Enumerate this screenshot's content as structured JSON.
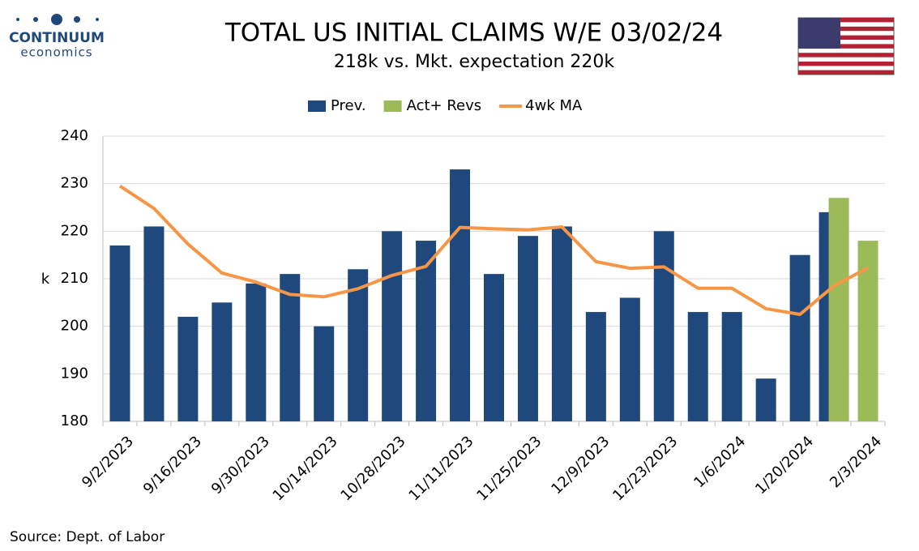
{
  "logo": {
    "name": "CONTINUUM",
    "tagline": "economics"
  },
  "source": "Source: Dept. of Labor",
  "chart_data": {
    "type": "bar",
    "title": "TOTAL US INITIAL CLAIMS W/E 03/02/24",
    "subtitle": "218k vs. Mkt. expectation 220k",
    "y_label": "k",
    "categories": [
      "9/2/2023",
      null,
      "9/16/2023",
      null,
      "9/30/2023",
      null,
      "10/14/2023",
      null,
      "10/28/2023",
      null,
      "11/11/2023",
      null,
      "11/25/2023",
      null,
      "12/9/2023",
      null,
      "12/23/2023",
      null,
      "1/6/2024",
      null,
      "1/20/2024",
      null,
      "2/3/2024"
    ],
    "series": [
      {
        "name": "Prev.",
        "type": "bar",
        "color": "#1f497d",
        "values": [
          217,
          221,
          202,
          205,
          209,
          211,
          200,
          212,
          220,
          218,
          233,
          211,
          219,
          221,
          203,
          206,
          220,
          203,
          203,
          189,
          215,
          224,
          null
        ]
      },
      {
        "name": "Act+ Revs",
        "type": "bar",
        "color": "#9bbb59",
        "values": [
          null,
          null,
          null,
          null,
          null,
          null,
          null,
          null,
          null,
          null,
          null,
          null,
          null,
          null,
          null,
          null,
          null,
          null,
          null,
          null,
          null,
          227,
          218
        ]
      },
      {
        "name": "4wk MA",
        "type": "line",
        "color": "#f79646",
        "values": [
          229.5,
          224.8,
          217.3,
          211.2,
          209.3,
          206.7,
          206.2,
          207.9,
          210.7,
          212.6,
          220.8,
          220.5,
          220.3,
          220.9,
          213.6,
          212.2,
          212.5,
          208,
          208,
          203.7,
          202.5,
          208.5,
          212.3
        ]
      }
    ],
    "ylim": [
      180,
      240
    ],
    "yticks": [
      180,
      190,
      200,
      210,
      220,
      230,
      240
    ],
    "grid": true,
    "legend": "top"
  }
}
